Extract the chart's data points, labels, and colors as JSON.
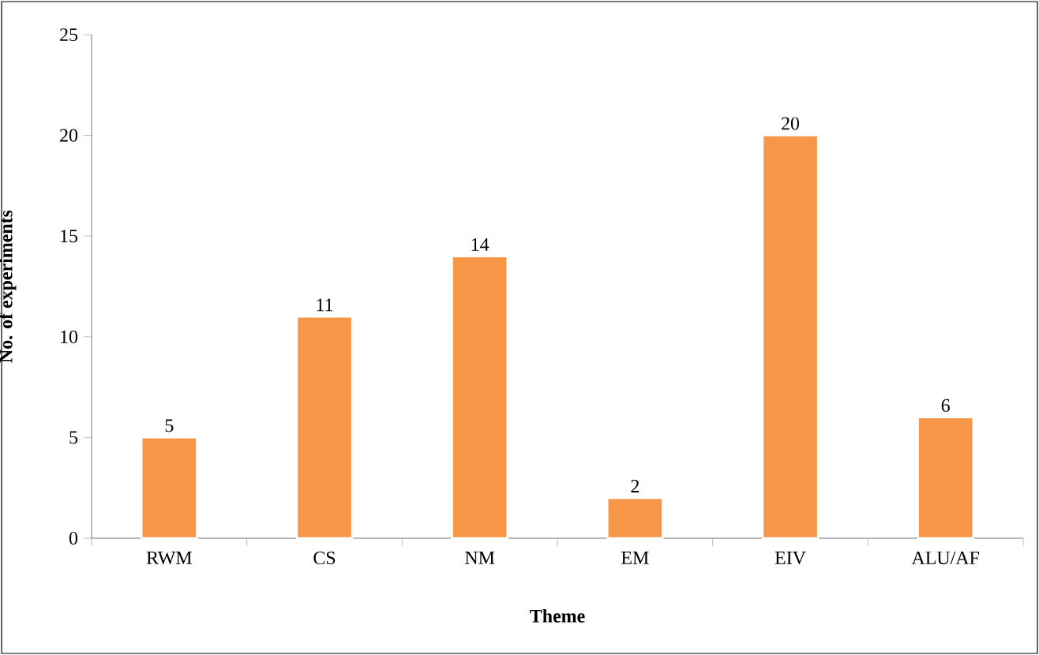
{
  "chart_data": {
    "type": "bar",
    "xlabel": "Theme",
    "ylabel": "No. of experiments",
    "categories": [
      "RWM",
      "CS",
      "NM",
      "EM",
      "EIV",
      "ALU/AF"
    ],
    "values": [
      5,
      11,
      14,
      2,
      20,
      6
    ],
    "color": "#f79646",
    "ylim": [
      0,
      25
    ],
    "yticks": [
      0,
      5,
      10,
      15,
      20,
      25
    ],
    "grid": false,
    "data_labels": true
  }
}
